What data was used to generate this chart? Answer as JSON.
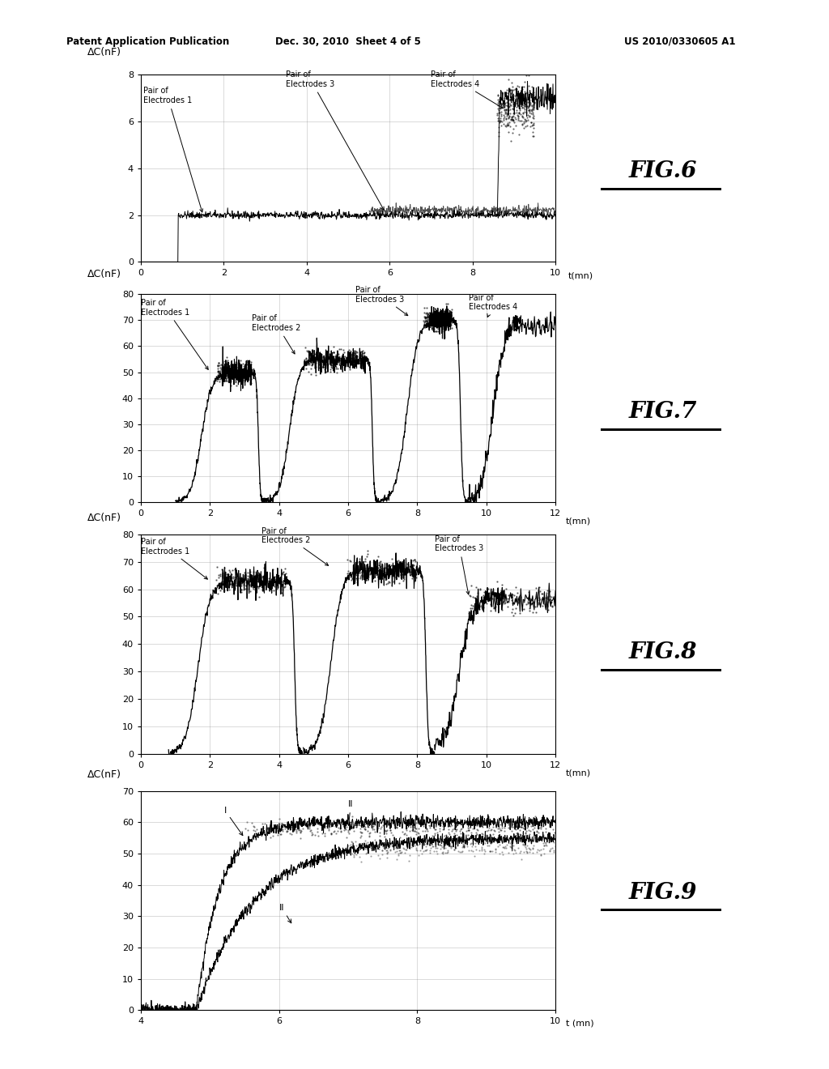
{
  "header_left": "Patent Application Publication",
  "header_mid": "Dec. 30, 2010  Sheet 4 of 5",
  "header_right": "US 2010/0330605 A1",
  "background_color": "#ffffff",
  "fig6": {
    "title": "FIG.6",
    "ylabel": "ΔC(nF)",
    "xlabel": "t(mn)",
    "xlim": [
      0,
      10
    ],
    "ylim": [
      0,
      8
    ],
    "yticks": [
      0,
      2,
      4,
      6,
      8
    ],
    "xticks": [
      0,
      2,
      4,
      6,
      8,
      10
    ]
  },
  "fig7": {
    "title": "FIG.7",
    "ylabel": "ΔC(nF)",
    "xlabel": "t(mn)",
    "xlim": [
      0,
      12
    ],
    "ylim": [
      0,
      80
    ],
    "yticks": [
      0,
      10,
      20,
      30,
      40,
      50,
      60,
      70,
      80
    ],
    "xticks": [
      0,
      2,
      4,
      6,
      8,
      10,
      12
    ]
  },
  "fig8": {
    "title": "FIG.8",
    "ylabel": "ΔC(nF)",
    "xlabel": "t(mn)",
    "xlim": [
      0,
      12
    ],
    "ylim": [
      0,
      80
    ],
    "yticks": [
      0,
      10,
      20,
      30,
      40,
      50,
      60,
      70,
      80
    ],
    "xticks": [
      0,
      2,
      4,
      6,
      8,
      10,
      12
    ]
  },
  "fig9": {
    "title": "FIG.9",
    "ylabel": "ΔC(nF)",
    "xlabel": "t (mn)",
    "xlim": [
      4,
      10
    ],
    "ylim": [
      0,
      70
    ],
    "yticks": [
      0,
      10,
      20,
      30,
      40,
      50,
      60,
      70
    ],
    "xticks": [
      4,
      6,
      8,
      10
    ]
  }
}
